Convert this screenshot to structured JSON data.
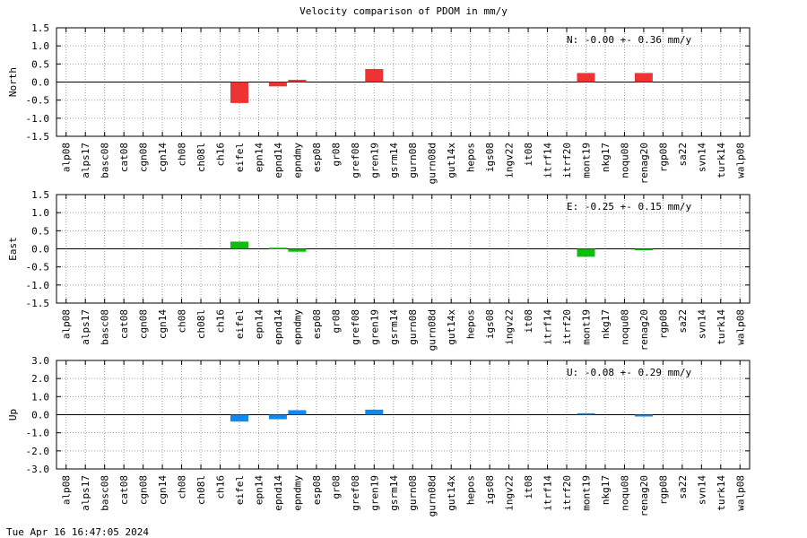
{
  "chart_data": {
    "title": "Velocity comparison of PDOM in mm/y",
    "type": "bar",
    "categories": [
      "alp08",
      "alps17",
      "basc08",
      "cat08",
      "cgn08",
      "cgn14",
      "ch08",
      "ch08l",
      "ch16",
      "eifel",
      "epn14",
      "epnd14",
      "epndmy",
      "esp08",
      "gr08",
      "gref08",
      "gren19",
      "gsrm14",
      "gurn08",
      "gurn08d",
      "gut14x",
      "hepos",
      "igs08",
      "ingv22",
      "it08",
      "itrf14",
      "itrf20",
      "mont19",
      "nkg17",
      "noqu08",
      "renag20",
      "rgp08",
      "sa22",
      "svn14",
      "turk14",
      "walp08"
    ],
    "panels": [
      {
        "ylabel": "North",
        "color": "#ee3333",
        "ylim": [
          -1.5,
          1.5
        ],
        "yticks": [
          "1.5",
          "1.0",
          "0.5",
          "0.0",
          "-0.5",
          "-1.0",
          "-1.5"
        ],
        "stats": "N:  -0.00 +-  0.36 mm/y",
        "values": {
          "eifel": -0.58,
          "epnd14": -0.12,
          "epndmy": 0.06,
          "gren19": 0.36,
          "mont19": 0.25,
          "renag20": 0.25
        }
      },
      {
        "ylabel": "East",
        "color": "#11bb11",
        "ylim": [
          -1.5,
          1.5
        ],
        "yticks": [
          "1.5",
          "1.0",
          "0.5",
          "0.0",
          "-0.5",
          "-1.0",
          "-1.5"
        ],
        "stats": "E:  -0.25 +-  0.15 mm/y",
        "values": {
          "eifel": 0.2,
          "epnd14": 0.03,
          "epndmy": -0.08,
          "mont19": -0.22,
          "renag20": -0.03
        }
      },
      {
        "ylabel": "Up",
        "color": "#1188ee",
        "ylim": [
          -3.0,
          3.0
        ],
        "yticks": [
          "3.0",
          "2.0",
          "1.0",
          "0.0",
          "-1.0",
          "-2.0",
          "-3.0"
        ],
        "stats": "U:  -0.08 +-  0.29 mm/y",
        "values": {
          "eifel": -0.38,
          "epnd14": -0.25,
          "epndmy": 0.25,
          "gren19": 0.28,
          "mont19": 0.08,
          "renag20": -0.1
        }
      }
    ]
  },
  "footer": "Tue Apr 16 16:47:05 2024"
}
